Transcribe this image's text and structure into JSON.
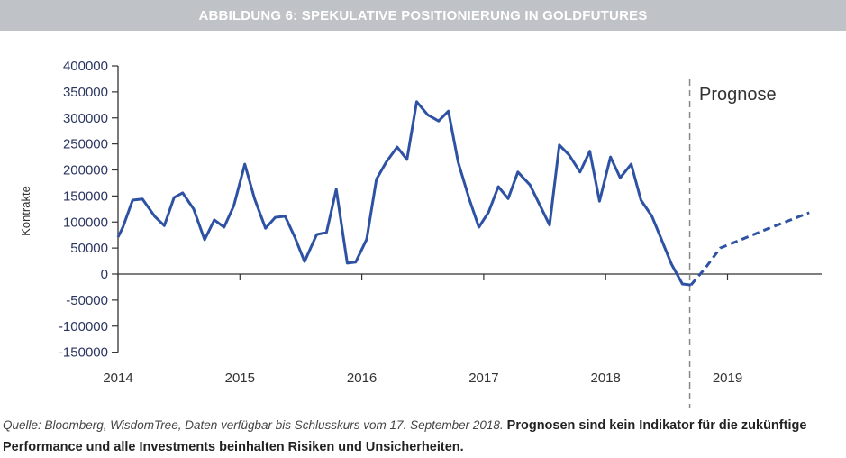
{
  "chart_data": {
    "type": "line",
    "title": "ABBILDUNG 6: SPEKULATIVE POSITIONIERUNG IN GOLDFUTURES",
    "xlabel": "",
    "ylabel": "Kontrakte",
    "ylim": [
      -150000,
      400000
    ],
    "xlim": [
      2014,
      2019.9
    ],
    "yticks": [
      400000,
      350000,
      300000,
      250000,
      200000,
      150000,
      100000,
      50000,
      0,
      -50000,
      -100000,
      -150000
    ],
    "ytick_labels": [
      "400000",
      "350000",
      "300000",
      "250000",
      "200000",
      "150000",
      "100000",
      "50000",
      "0",
      "-50000",
      "-100000",
      "-150000"
    ],
    "xticks": [
      2014,
      2015,
      2016,
      2017,
      2018,
      2019
    ],
    "xtick_labels": [
      "2014",
      "2015",
      "2016",
      "2017",
      "2018",
      "2019"
    ],
    "grid": false,
    "line_color": "#2e52a3",
    "forecast_marker": {
      "x": 2018.69,
      "label": "Prognose"
    },
    "series": [
      {
        "style": "solid",
        "x": [
          2014.0,
          2014.04,
          2014.12,
          2014.2,
          2014.3,
          2014.38,
          2014.46,
          2014.53,
          2014.62,
          2014.71,
          2014.79,
          2014.87,
          2014.95,
          2015.04,
          2015.12,
          2015.21,
          2015.29,
          2015.37,
          2015.45,
          2015.53,
          2015.63,
          2015.71,
          2015.79,
          2015.88,
          2015.95,
          2016.04,
          2016.12,
          2016.2,
          2016.29,
          2016.37,
          2016.45,
          2016.54,
          2016.63,
          2016.71,
          2016.79,
          2016.88,
          2016.96,
          2017.04,
          2017.12,
          2017.2,
          2017.28,
          2017.38,
          2017.54,
          2017.62,
          2017.7,
          2017.79,
          2017.87,
          2017.95,
          2018.04,
          2018.12,
          2018.21,
          2018.29,
          2018.38,
          2018.45,
          2018.54,
          2018.63,
          2018.7
        ],
        "y": [
          71000,
          90000,
          142000,
          144000,
          111000,
          93000,
          147000,
          156000,
          125000,
          66000,
          104000,
          90000,
          131000,
          211000,
          145000,
          88000,
          109000,
          111000,
          71000,
          24000,
          76000,
          80000,
          163000,
          21000,
          23000,
          67000,
          182000,
          215000,
          244000,
          220000,
          331000,
          306000,
          294000,
          313000,
          215000,
          145000,
          90000,
          119000,
          168000,
          145000,
          196000,
          171000,
          94000,
          248000,
          229000,
          196000,
          236000,
          140000,
          225000,
          185000,
          211000,
          142000,
          111000,
          71000,
          19000,
          -19000,
          -21000
        ]
      },
      {
        "style": "dashed",
        "x": [
          2018.7,
          2018.82,
          2018.94,
          2019.09,
          2019.34,
          2019.67
        ],
        "y": [
          -21000,
          12000,
          50000,
          64000,
          88000,
          118000
        ]
      }
    ]
  },
  "footer": {
    "source": "Quelle: Bloomberg, WisdomTree, Daten verfügbar bis Schlusskurs vom 17. September 2018.",
    "disclaimer": "Prognosen sind kein Indikator für die zukünftige Performance und alle Investments beinhalten Risiken und Unsicherheiten."
  }
}
